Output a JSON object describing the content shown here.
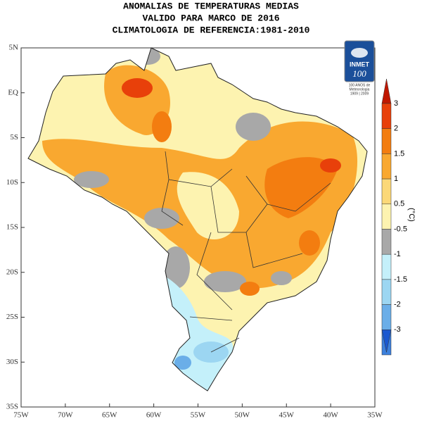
{
  "title": [
    "ANOMALIAS DE TEMPERATURAS MEDIAS",
    "VALIDO PARA MARCO DE 2016",
    "CLIMATOLOGIA DE REFERENCIA:1981-2010"
  ],
  "map": {
    "lat_labels": [
      "5N",
      "EQ",
      "5S",
      "10S",
      "15S",
      "20S",
      "25S",
      "30S",
      "35S"
    ],
    "lon_labels": [
      "75W",
      "70W",
      "65W",
      "60W",
      "55W",
      "50W",
      "45W",
      "40W",
      "35W"
    ]
  },
  "colorbar": {
    "unit": "(°C)",
    "ticks": [
      3,
      2,
      1.5,
      1,
      0.5,
      -0.5,
      -1,
      -1.5,
      -2,
      -3
    ],
    "colors": [
      "#c01800",
      "#e8400a",
      "#f37d10",
      "#f9a830",
      "#fbd878",
      "#fdf3b0",
      "#a8a8a8",
      "#c4f0fa",
      "#9cd6f2",
      "#6aaee8",
      "#3c80dc",
      "#1a58d0"
    ]
  },
  "logo": {
    "name": "INMET",
    "number": "100",
    "caption": [
      "100 ANOS de",
      "Meteorologia",
      "1909 | 2009"
    ]
  }
}
